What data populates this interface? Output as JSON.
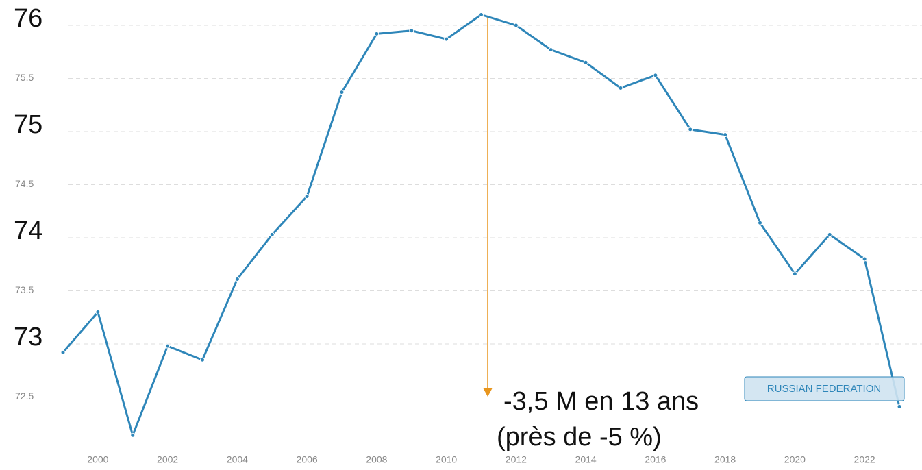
{
  "chart_data": {
    "type": "line",
    "x": [
      1999,
      2000,
      2001,
      2002,
      2003,
      2004,
      2005,
      2006,
      2007,
      2008,
      2009,
      2010,
      2011,
      2012,
      2013,
      2014,
      2015,
      2016,
      2017,
      2018,
      2019,
      2020,
      2021,
      2022,
      2023
    ],
    "series": [
      {
        "name": "RUSSIAN FEDERATION",
        "color": "#2e86b9",
        "values": [
          72.92,
          73.3,
          72.14,
          72.98,
          72.85,
          73.61,
          74.03,
          74.39,
          75.37,
          75.92,
          75.95,
          75.87,
          76.1,
          76.0,
          75.77,
          75.65,
          75.41,
          75.53,
          75.02,
          74.97,
          74.14,
          73.66,
          74.03,
          73.8,
          72.41
        ]
      }
    ],
    "xlim": [
      1999,
      2023
    ],
    "xticks": [
      2000,
      2002,
      2004,
      2006,
      2008,
      2010,
      2012,
      2014,
      2016,
      2018,
      2020,
      2022
    ],
    "ylim": [
      72.0,
      76.15
    ],
    "yticks": [
      72.5,
      73,
      73.5,
      74,
      74.5,
      75,
      75.5,
      76
    ],
    "grid": true,
    "annotations": [
      "-3,5 M en 13 ans",
      "(près de -5 %)"
    ],
    "annotation_color": "#e8961e"
  }
}
